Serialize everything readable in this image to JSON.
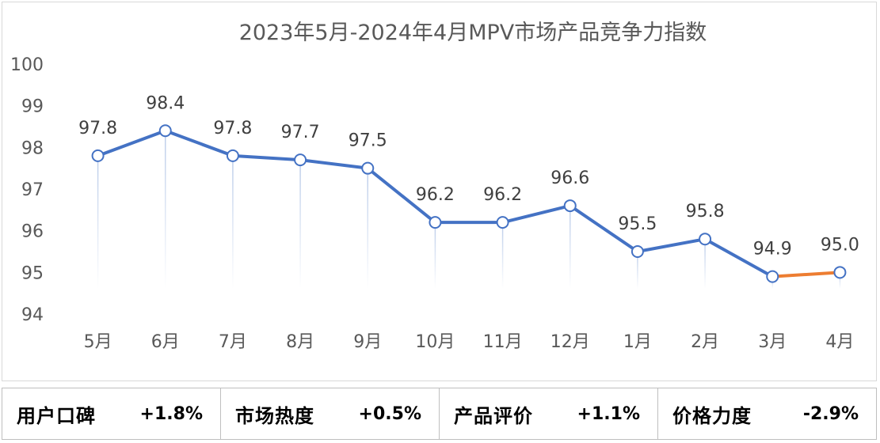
{
  "chart_data": {
    "type": "line",
    "title": "2023年5月-2024年4月MPV市场产品竞争力指数",
    "categories": [
      "5月",
      "6月",
      "7月",
      "8月",
      "9月",
      "10月",
      "11月",
      "12月",
      "1月",
      "2月",
      "3月",
      "4月"
    ],
    "values": [
      97.8,
      98.4,
      97.8,
      97.7,
      97.5,
      96.2,
      96.2,
      96.6,
      95.5,
      95.8,
      94.9,
      95.0
    ],
    "value_labels": [
      "97.8",
      "98.4",
      "97.8",
      "97.7",
      "97.5",
      "96.2",
      "96.2",
      "96.6",
      "95.5",
      "95.8",
      "94.9",
      "95.0"
    ],
    "ylim": [
      94,
      100
    ],
    "yticks": [
      "94",
      "95",
      "96",
      "97",
      "98",
      "99",
      "100"
    ],
    "grid": false,
    "drop_lines": true,
    "colors": {
      "line": "#4472c4",
      "highlight_segment": "#ed7d31",
      "drop_line": "#b4c7e7"
    },
    "highlight_segment_from_index": 10
  },
  "stats": [
    {
      "label": "用户口碑",
      "value": "+1.8%"
    },
    {
      "label": "市场热度",
      "value": "+0.5%"
    },
    {
      "label": "产品评价",
      "value": "+1.1%"
    },
    {
      "label": "价格力度",
      "value": "-2.9%"
    }
  ]
}
